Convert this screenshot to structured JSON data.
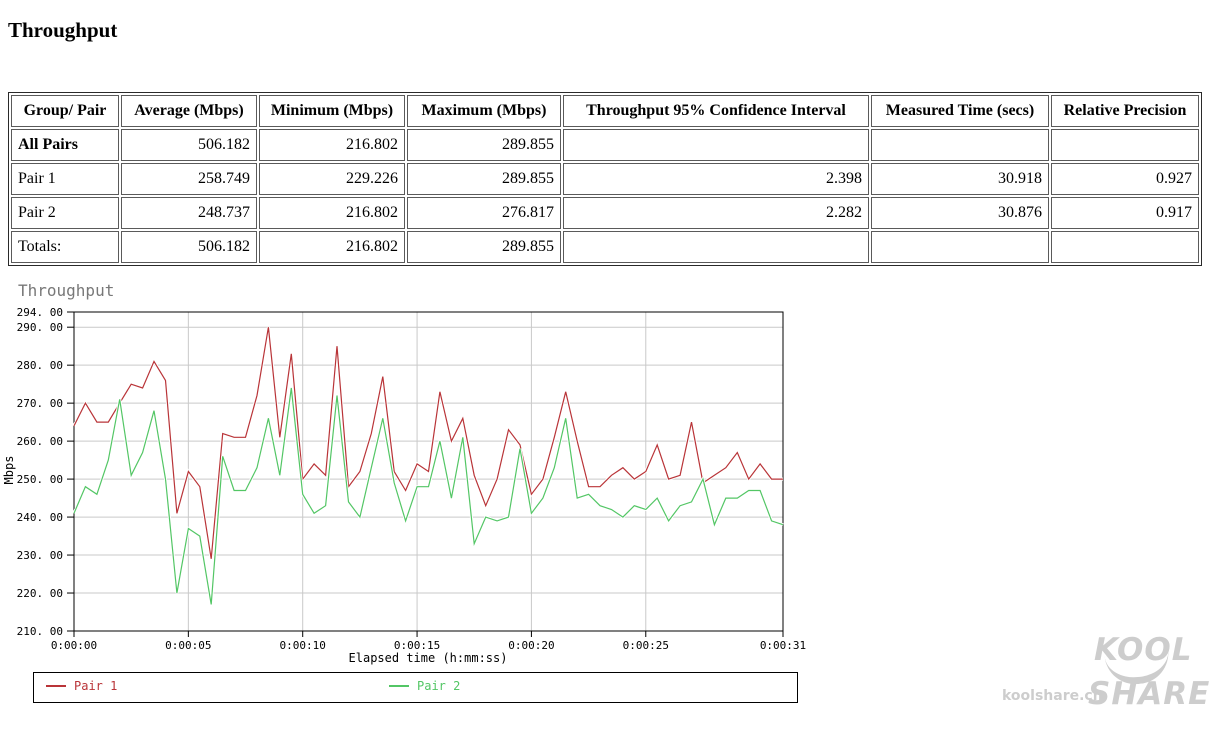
{
  "page": {
    "title": "Throughput"
  },
  "table": {
    "columns": [
      "Group/ Pair",
      "Average (Mbps)",
      "Minimum (Mbps)",
      "Maximum (Mbps)",
      "Throughput 95% Confidence Interval",
      "Measured Time (secs)",
      "Relative Precision"
    ],
    "rows": [
      {
        "group": "All Pairs",
        "bold": true,
        "values": [
          "506.182",
          "216.802",
          "289.855",
          "",
          "",
          ""
        ]
      },
      {
        "group": "Pair 1",
        "bold": false,
        "values": [
          "258.749",
          "229.226",
          "289.855",
          "2.398",
          "30.918",
          "0.927"
        ]
      },
      {
        "group": "Pair 2",
        "bold": false,
        "values": [
          "248.737",
          "216.802",
          "276.817",
          "2.282",
          "30.876",
          "0.917"
        ]
      },
      {
        "group": "Totals:",
        "bold": false,
        "values": [
          "506.182",
          "216.802",
          "289.855",
          "",
          "",
          ""
        ]
      }
    ]
  },
  "chart_data": {
    "type": "line",
    "title": "Throughput",
    "ylabel": "Mbps",
    "xlabel": "Elapsed time (h:mm:ss)",
    "ylim": [
      210,
      294
    ],
    "xlim": [
      0,
      31
    ],
    "grid": true,
    "legend_position": "bottom",
    "y_ticks": [
      {
        "v": 294,
        "label": "294. 00"
      },
      {
        "v": 290,
        "label": "290. 00"
      },
      {
        "v": 280,
        "label": "280. 00"
      },
      {
        "v": 270,
        "label": "270. 00"
      },
      {
        "v": 260,
        "label": "260. 00"
      },
      {
        "v": 250,
        "label": "250. 00"
      },
      {
        "v": 240,
        "label": "240. 00"
      },
      {
        "v": 230,
        "label": "230. 00"
      },
      {
        "v": 220,
        "label": "220. 00"
      },
      {
        "v": 210,
        "label": "210. 00"
      }
    ],
    "x_ticks": [
      {
        "v": 0,
        "label": "0:00:00"
      },
      {
        "v": 5,
        "label": "0:00:05"
      },
      {
        "v": 10,
        "label": "0:00:10"
      },
      {
        "v": 15,
        "label": "0:00:15"
      },
      {
        "v": 20,
        "label": "0:00:20"
      },
      {
        "v": 25,
        "label": "0:00:25"
      },
      {
        "v": 31,
        "label": "0:00:31"
      }
    ],
    "x_start": 0,
    "x_step": 0.5,
    "series": [
      {
        "name": "Pair 1",
        "color": "#b93438",
        "values": [
          264,
          270,
          265,
          265,
          270,
          275,
          274,
          281,
          276,
          241,
          252,
          248,
          229,
          262,
          261,
          261,
          272,
          290,
          261,
          283,
          250,
          254,
          251,
          285,
          248,
          252,
          262,
          277,
          252,
          247,
          254,
          252,
          273,
          260,
          266,
          251,
          243,
          250,
          263,
          259,
          246,
          250,
          261,
          273,
          260,
          248,
          248,
          251,
          253,
          250,
          252,
          259,
          250,
          251,
          265,
          249,
          251,
          253,
          257,
          250,
          254,
          250,
          250
        ]
      },
      {
        "name": "Pair 2",
        "color": "#53c665",
        "values": [
          241,
          248,
          246,
          255,
          271,
          251,
          257,
          268,
          250,
          220,
          237,
          235,
          217,
          256,
          247,
          247,
          253,
          266,
          251,
          274,
          246,
          241,
          243,
          272,
          244,
          240,
          253,
          266,
          249,
          239,
          248,
          248,
          260,
          245,
          261,
          233,
          240,
          239,
          240,
          258,
          241,
          245,
          253,
          266,
          245,
          246,
          243,
          242,
          240,
          243,
          242,
          245,
          239,
          243,
          244,
          250,
          238,
          245,
          245,
          247,
          247,
          239,
          238
        ]
      }
    ],
    "colors": {
      "grid": "#c9c9c9",
      "axis": "#000000",
      "title": "#787878"
    }
  },
  "watermark": {
    "url_text": "koolshare.cn",
    "logo_line1": "KOOL",
    "logo_line2": "SHARE"
  }
}
